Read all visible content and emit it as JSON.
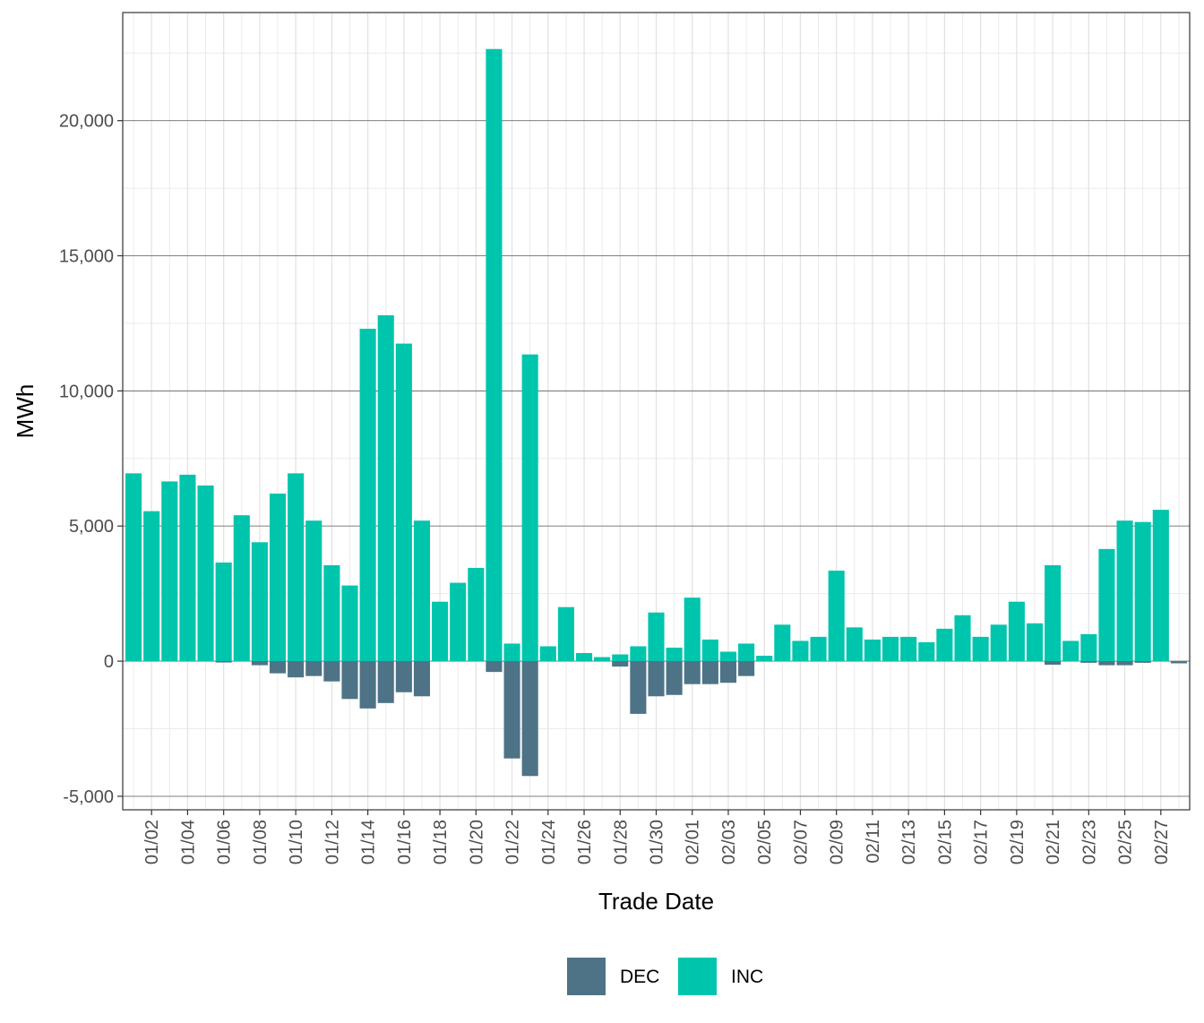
{
  "chart_data": {
    "type": "bar",
    "xlabel": "Trade Date",
    "ylabel": "MWh",
    "ylim": [
      -5500,
      24000
    ],
    "yticks": [
      -5000,
      0,
      5000,
      10000,
      15000,
      20000
    ],
    "ytick_labels": [
      "-5,000",
      "0",
      "5,000",
      "10,000",
      "15,000",
      "20,000"
    ],
    "grid": true,
    "legend_position": "bottom",
    "colors": {
      "DEC": "#4e7387",
      "INC": "#00c5ad"
    },
    "categories": [
      "01/01",
      "01/02",
      "01/03",
      "01/04",
      "01/05",
      "01/06",
      "01/07",
      "01/08",
      "01/09",
      "01/10",
      "01/11",
      "01/12",
      "01/13",
      "01/14",
      "01/15",
      "01/16",
      "01/17",
      "01/18",
      "01/19",
      "01/20",
      "01/21",
      "01/22",
      "01/23",
      "01/24",
      "01/25",
      "01/26",
      "01/27",
      "01/28",
      "01/29",
      "01/30",
      "01/31",
      "02/01",
      "02/02",
      "02/03",
      "02/04",
      "02/05",
      "02/06",
      "02/07",
      "02/08",
      "02/09",
      "02/10",
      "02/11",
      "02/12",
      "02/13",
      "02/14",
      "02/15",
      "02/16",
      "02/17",
      "02/18",
      "02/19",
      "02/20",
      "02/21",
      "02/22",
      "02/23",
      "02/24",
      "02/25",
      "02/26",
      "02/27",
      "02/28"
    ],
    "xtick_labels": [
      "01/02",
      "01/04",
      "01/06",
      "01/08",
      "01/10",
      "01/12",
      "01/14",
      "01/16",
      "01/18",
      "01/20",
      "01/22",
      "01/24",
      "01/26",
      "01/28",
      "01/30",
      "02/01",
      "02/03",
      "02/05",
      "02/07",
      "02/09",
      "02/11",
      "02/13",
      "02/15",
      "02/17",
      "02/19",
      "02/21",
      "02/23",
      "02/25",
      "02/27"
    ],
    "series": [
      {
        "name": "DEC",
        "values": [
          0,
          0,
          0,
          0,
          0,
          -50,
          0,
          -150,
          -450,
          -600,
          -550,
          -750,
          -1400,
          -1750,
          -1550,
          -1150,
          -1300,
          0,
          0,
          0,
          -400,
          -3600,
          -4250,
          0,
          0,
          0,
          0,
          -200,
          -1950,
          -1300,
          -1250,
          -850,
          -850,
          -800,
          -550,
          0,
          0,
          0,
          0,
          0,
          0,
          0,
          0,
          0,
          0,
          0,
          0,
          0,
          0,
          0,
          0,
          -130,
          0,
          -60,
          -150,
          -150,
          -60,
          0,
          -80
        ]
      },
      {
        "name": "INC",
        "values": [
          6950,
          5550,
          6650,
          6900,
          6500,
          3650,
          5400,
          4400,
          6200,
          6950,
          5200,
          3550,
          2800,
          12300,
          12800,
          11750,
          5200,
          2200,
          2900,
          3450,
          22650,
          650,
          11350,
          550,
          2000,
          300,
          150,
          250,
          550,
          1800,
          500,
          2350,
          800,
          350,
          650,
          200,
          1350,
          750,
          900,
          3350,
          1250,
          800,
          900,
          900,
          700,
          1200,
          1700,
          900,
          1350,
          2200,
          1400,
          3550,
          750,
          1000,
          4150,
          5200,
          5150,
          5600,
          0
        ]
      }
    ],
    "legend": [
      {
        "key": "DEC",
        "label": "DEC"
      },
      {
        "key": "INC",
        "label": "INC"
      }
    ]
  }
}
